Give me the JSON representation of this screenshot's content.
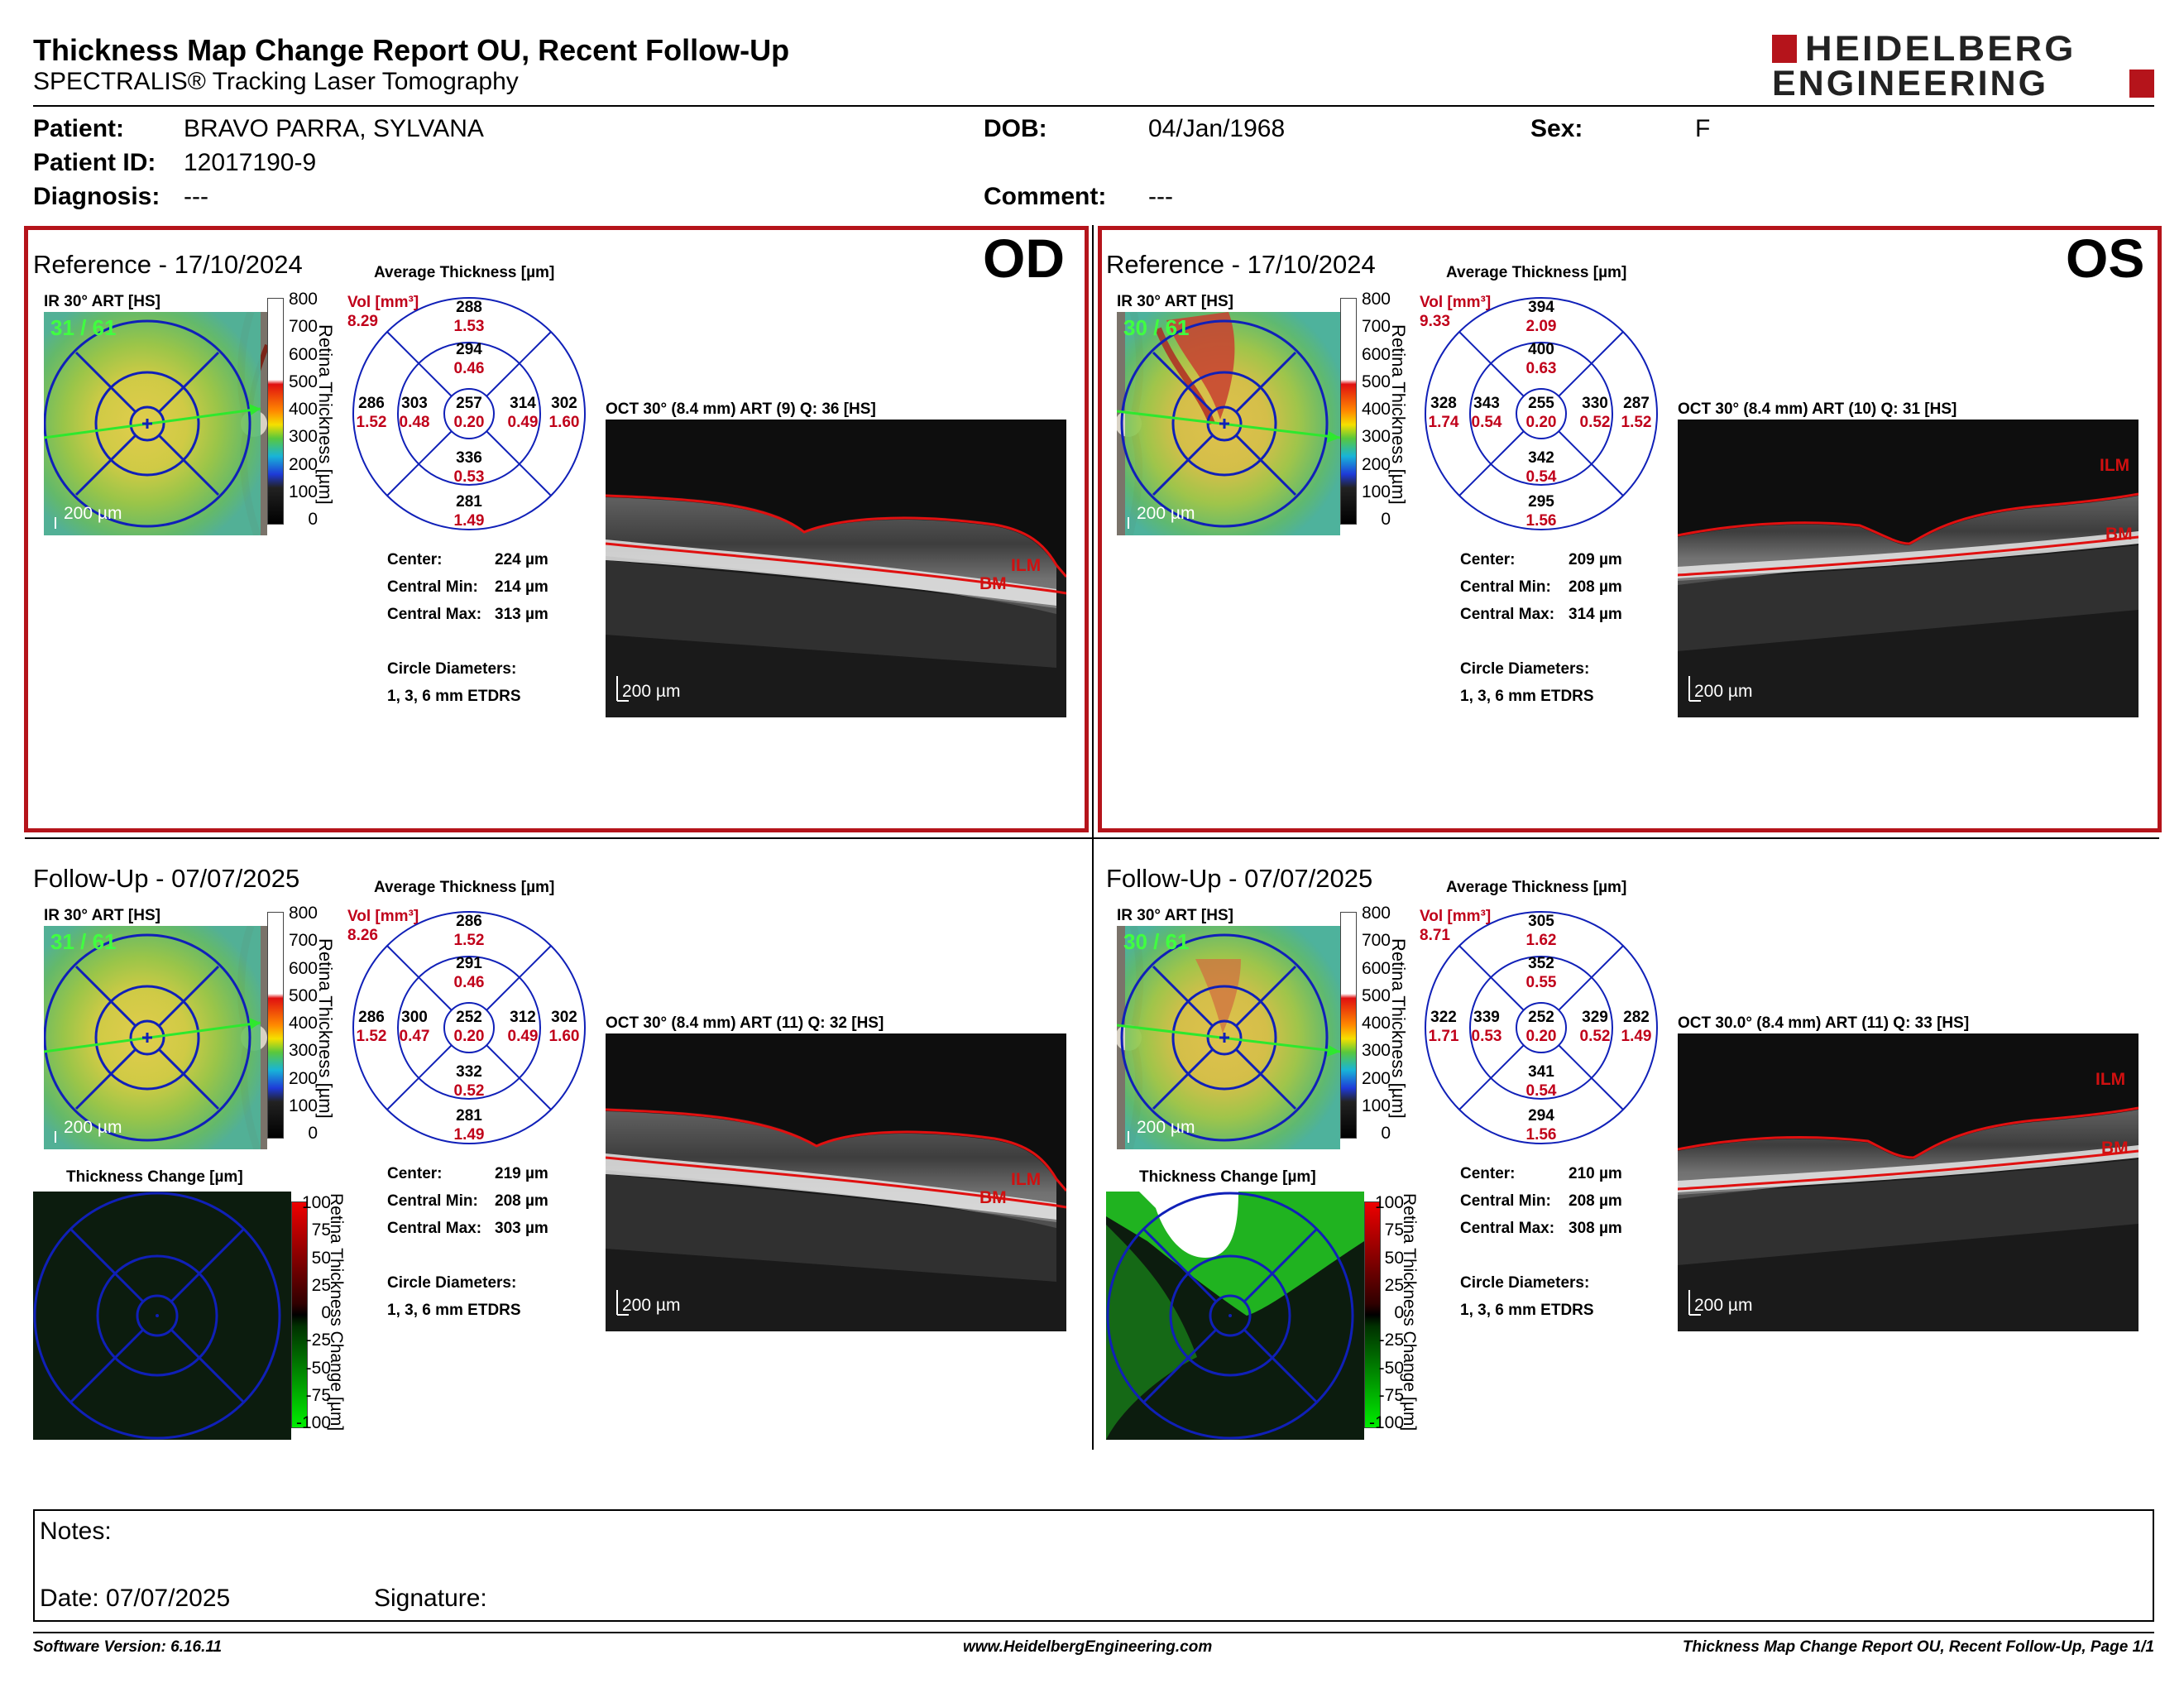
{
  "header": {
    "title": "Thickness Map Change Report OU, Recent Follow-Up",
    "subtitle": "SPECTRALIS® Tracking Laser Tomography",
    "logo_line1": "HEIDELBERG",
    "logo_line2": "ENGINEERING"
  },
  "patient": {
    "patient_label": "Patient:",
    "patient_value": "BRAVO PARRA, SYLVANA",
    "id_label": "Patient ID:",
    "id_value": "12017190-9",
    "diagnosis_label": "Diagnosis:",
    "diagnosis_value": "---",
    "dob_label": "DOB:",
    "dob_value": "04/Jan/1968",
    "sex_label": "Sex:",
    "sex_value": "F",
    "comment_label": "Comment:",
    "comment_value": "---"
  },
  "labels": {
    "avg_thickness": "Average Thickness [µm]",
    "vol": "Vol [mm³]",
    "ir": "IR 30° ART [HS]",
    "scale_bar": "200 µm",
    "center": "Center:",
    "central_min": "Central Min:",
    "central_max": "Central Max:",
    "circle_diameters": "Circle Diameters:",
    "etdrs": "1, 3, 6 mm ETDRS",
    "thickness_change": "Thickness Change [µm]",
    "retina_thickness": "Retina Thickness [µm]",
    "retina_thickness_change": "Retina Thickness Change [µm]",
    "ilm": "ILM",
    "bm": "BM"
  },
  "scale_thickness": [
    "800",
    "700",
    "600",
    "500",
    "400",
    "300",
    "200",
    "100",
    "0"
  ],
  "scale_change": [
    "100",
    "75",
    "50",
    "25",
    "0",
    "-25",
    "-50",
    "-75",
    "-100"
  ],
  "panels": {
    "od_ref": {
      "title": "Reference - 17/10/2024",
      "eye": "OD",
      "art": "31 / 61",
      "vol": "8.29",
      "rings": {
        "sup_out": [
          "288",
          "1.53"
        ],
        "sup_in": [
          "294",
          "0.46"
        ],
        "center": [
          "257",
          "0.20"
        ],
        "nas_in": [
          "314",
          "0.49"
        ],
        "nas_out": [
          "302",
          "1.60"
        ],
        "tem_in": [
          "303",
          "0.48"
        ],
        "tem_out": [
          "286",
          "1.52"
        ],
        "inf_in": [
          "336",
          "0.53"
        ],
        "inf_out": [
          "281",
          "1.49"
        ]
      },
      "center_val": "224 µm",
      "min_val": "214 µm",
      "max_val": "313 µm",
      "oct_label": "OCT 30° (8.4 mm) ART (9) Q: 36 [HS]"
    },
    "os_ref": {
      "title": "Reference - 17/10/2024",
      "eye": "OS",
      "art": "30 / 61",
      "vol": "9.33",
      "rings": {
        "sup_out": [
          "394",
          "2.09"
        ],
        "sup_in": [
          "400",
          "0.63"
        ],
        "center": [
          "255",
          "0.20"
        ],
        "nas_in": [
          "330",
          "0.52"
        ],
        "nas_out": [
          "287",
          "1.52"
        ],
        "tem_in": [
          "343",
          "0.54"
        ],
        "tem_out": [
          "328",
          "1.74"
        ],
        "inf_in": [
          "342",
          "0.54"
        ],
        "inf_out": [
          "295",
          "1.56"
        ]
      },
      "center_val": "209 µm",
      "min_val": "208 µm",
      "max_val": "314 µm",
      "oct_label": "OCT 30° (8.4 mm) ART (10) Q: 31 [HS]"
    },
    "od_fu": {
      "title": "Follow-Up - 07/07/2025",
      "art": "31 / 61",
      "vol": "8.26",
      "rings": {
        "sup_out": [
          "286",
          "1.52"
        ],
        "sup_in": [
          "291",
          "0.46"
        ],
        "center": [
          "252",
          "0.20"
        ],
        "nas_in": [
          "312",
          "0.49"
        ],
        "nas_out": [
          "302",
          "1.60"
        ],
        "tem_in": [
          "300",
          "0.47"
        ],
        "tem_out": [
          "286",
          "1.52"
        ],
        "inf_in": [
          "332",
          "0.52"
        ],
        "inf_out": [
          "281",
          "1.49"
        ]
      },
      "center_val": "219 µm",
      "min_val": "208 µm",
      "max_val": "303 µm",
      "oct_label": "OCT 30° (8.4 mm) ART (11) Q: 32 [HS]"
    },
    "os_fu": {
      "title": "Follow-Up - 07/07/2025",
      "art": "30 / 61",
      "vol": "8.71",
      "rings": {
        "sup_out": [
          "305",
          "1.62"
        ],
        "sup_in": [
          "352",
          "0.55"
        ],
        "center": [
          "252",
          "0.20"
        ],
        "nas_in": [
          "329",
          "0.52"
        ],
        "nas_out": [
          "282",
          "1.49"
        ],
        "tem_in": [
          "339",
          "0.53"
        ],
        "tem_out": [
          "322",
          "1.71"
        ],
        "inf_in": [
          "341",
          "0.54"
        ],
        "inf_out": [
          "294",
          "1.56"
        ]
      },
      "center_val": "210 µm",
      "min_val": "208 µm",
      "max_val": "308 µm",
      "oct_label": "OCT 30.0° (8.4 mm) ART (11) Q: 33 [HS]"
    }
  },
  "notes": {
    "notes_label": "Notes:",
    "date_label": "Date: 07/07/2025",
    "signature_label": "Signature:"
  },
  "footer": {
    "software": "Software Version: 6.16.11",
    "website": "www.HeidelbergEngineering.com",
    "page": "Thickness Map Change Report OU, Recent Follow-Up, Page 1/1"
  }
}
